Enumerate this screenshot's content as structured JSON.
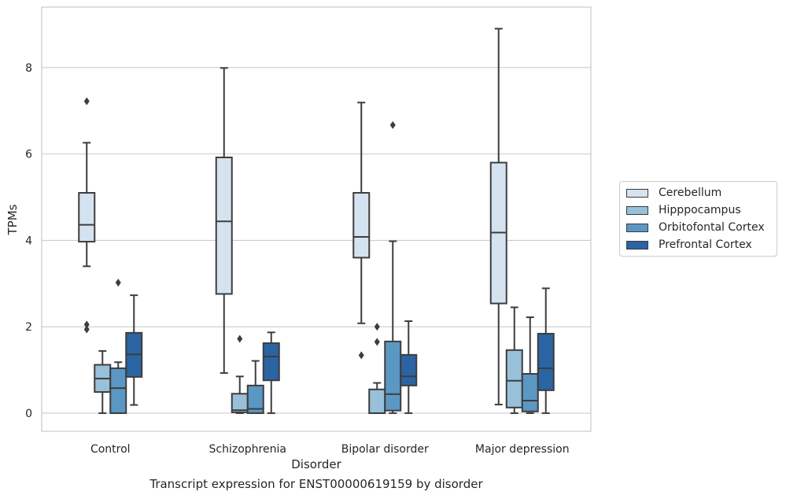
{
  "caption": "Transcript expression for ENST00000619159 by disorder",
  "chart_data": {
    "type": "box",
    "xlabel": "Disorder",
    "ylabel": "TPMs",
    "categories": [
      "Control",
      "Schizophrenia",
      "Bipolar disorder",
      "Major depression"
    ],
    "ylim": [
      -0.42,
      9.4
    ],
    "yticks": [
      0,
      2,
      4,
      6,
      8
    ],
    "grid": true,
    "legend_position": "right",
    "series": [
      {
        "name": "Cerebellum",
        "color": "#d5e3f1",
        "boxes": [
          {
            "whisker_low": 3.4,
            "q1": 3.97,
            "median": 4.36,
            "q3": 5.1,
            "whisker_high": 6.26,
            "outliers": [
              7.22,
              2.05,
              1.94
            ]
          },
          {
            "whisker_low": 0.93,
            "q1": 2.76,
            "median": 4.44,
            "q3": 5.92,
            "whisker_high": 7.99,
            "outliers": []
          },
          {
            "whisker_low": 2.08,
            "q1": 3.6,
            "median": 4.08,
            "q3": 5.1,
            "whisker_high": 7.19,
            "outliers": [
              1.34
            ]
          },
          {
            "whisker_low": 0.2,
            "q1": 2.54,
            "median": 4.18,
            "q3": 5.8,
            "whisker_high": 8.9,
            "outliers": []
          }
        ]
      },
      {
        "name": "Hipppocampus",
        "color": "#98c1d9",
        "boxes": [
          {
            "whisker_low": 0.0,
            "q1": 0.49,
            "median": 0.8,
            "q3": 1.12,
            "whisker_high": 1.44,
            "outliers": []
          },
          {
            "whisker_low": 0.0,
            "q1": 0.02,
            "median": 0.07,
            "q3": 0.45,
            "whisker_high": 0.85,
            "outliers": [
              1.72
            ]
          },
          {
            "whisker_low": 0.0,
            "q1": 0.0,
            "median": 0.0,
            "q3": 0.55,
            "whisker_high": 0.7,
            "outliers": [
              2.0,
              1.65
            ]
          },
          {
            "whisker_low": 0.0,
            "q1": 0.13,
            "median": 0.75,
            "q3": 1.46,
            "whisker_high": 2.45,
            "outliers": []
          }
        ]
      },
      {
        "name": "Orbitofontal Cortex",
        "color": "#5b97c3",
        "boxes": [
          {
            "whisker_low": 0.0,
            "q1": 0.0,
            "median": 0.58,
            "q3": 1.04,
            "whisker_high": 1.18,
            "outliers": [
              3.02
            ]
          },
          {
            "whisker_low": 0.0,
            "q1": 0.0,
            "median": 0.1,
            "q3": 0.64,
            "whisker_high": 1.21,
            "outliers": []
          },
          {
            "whisker_low": 0.0,
            "q1": 0.06,
            "median": 0.44,
            "q3": 1.66,
            "whisker_high": 3.98,
            "outliers": [
              6.67
            ]
          },
          {
            "whisker_low": 0.0,
            "q1": 0.04,
            "median": 0.29,
            "q3": 0.91,
            "whisker_high": 2.22,
            "outliers": []
          }
        ]
      },
      {
        "name": "Prefrontal Cortex",
        "color": "#2a64a3",
        "boxes": [
          {
            "whisker_low": 0.19,
            "q1": 0.84,
            "median": 1.36,
            "q3": 1.86,
            "whisker_high": 2.73,
            "outliers": []
          },
          {
            "whisker_low": 0.0,
            "q1": 0.76,
            "median": 1.31,
            "q3": 1.62,
            "whisker_high": 1.87,
            "outliers": []
          },
          {
            "whisker_low": 0.0,
            "q1": 0.64,
            "median": 0.85,
            "q3": 1.35,
            "whisker_high": 2.13,
            "outliers": []
          },
          {
            "whisker_low": 0.0,
            "q1": 0.53,
            "median": 1.04,
            "q3": 1.84,
            "whisker_high": 2.89,
            "outliers": []
          }
        ]
      }
    ]
  }
}
